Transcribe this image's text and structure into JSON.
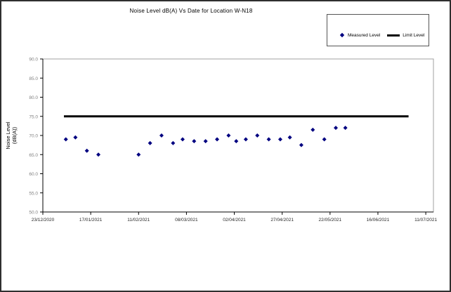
{
  "frame": {
    "background": "#ffffff",
    "border_color": "#2f2f2f"
  },
  "chart_data": {
    "type": "scatter",
    "title": "Noise Level dB(A) Vs Date for Location W-N18",
    "xlabel": "",
    "ylabel_lines": [
      "Noise Level",
      "(dB(A))"
    ],
    "ylim": [
      50,
      90
    ],
    "y_tick_step": 5,
    "y_tick_labels": [
      "50.0",
      "55.0",
      "60.0",
      "65.0",
      "70.0",
      "75.0",
      "80.0",
      "85.0",
      "90.0"
    ],
    "x_tick_labels": [
      "23/12/2020",
      "17/01/2021",
      "11/02/2021",
      "08/03/2021",
      "02/04/2021",
      "27/04/2021",
      "22/05/2021",
      "16/06/2021",
      "11/07/2021"
    ],
    "x_tick_days": [
      0,
      25,
      50,
      75,
      100,
      125,
      150,
      175,
      200
    ],
    "x_max_day": 204,
    "grid": false,
    "colors": {
      "measured_point": "#000080",
      "limit_line": "#000000",
      "y_tick_label": "#808080",
      "x_tick_label": "#262626",
      "plot_border": "#a0a0a0",
      "axis": "#000000"
    },
    "legend": {
      "position": "top-right",
      "entries": [
        {
          "label": "Measured Level",
          "marker": "diamond",
          "color": "#000080"
        },
        {
          "label": "Limit Level",
          "marker": "line",
          "color": "#000000"
        }
      ]
    },
    "series": [
      {
        "name": "Measured Level",
        "type": "scatter",
        "marker": "diamond",
        "color": "#000080",
        "points": [
          {
            "date": "04/01/2021",
            "day": 12,
            "value": 69.0
          },
          {
            "date": "09/01/2021",
            "day": 17,
            "value": 69.5
          },
          {
            "date": "15/01/2021",
            "day": 23,
            "value": 66.0
          },
          {
            "date": "21/01/2021",
            "day": 29,
            "value": 65.0
          },
          {
            "date": "11/02/2021",
            "day": 50,
            "value": 65.0
          },
          {
            "date": "17/02/2021",
            "day": 56,
            "value": 68.0
          },
          {
            "date": "23/02/2021",
            "day": 62,
            "value": 70.0
          },
          {
            "date": "01/03/2021",
            "day": 68,
            "value": 68.0
          },
          {
            "date": "06/03/2021",
            "day": 73,
            "value": 69.0
          },
          {
            "date": "12/03/2021",
            "day": 79,
            "value": 68.5
          },
          {
            "date": "18/03/2021",
            "day": 85,
            "value": 68.5
          },
          {
            "date": "24/03/2021",
            "day": 91,
            "value": 69.0
          },
          {
            "date": "30/03/2021",
            "day": 97,
            "value": 70.0
          },
          {
            "date": "03/04/2021",
            "day": 101,
            "value": 68.5
          },
          {
            "date": "08/04/2021",
            "day": 106,
            "value": 69.0
          },
          {
            "date": "14/04/2021",
            "day": 112,
            "value": 70.0
          },
          {
            "date": "20/04/2021",
            "day": 118,
            "value": 69.0
          },
          {
            "date": "26/04/2021",
            "day": 124,
            "value": 69.0
          },
          {
            "date": "01/05/2021",
            "day": 129,
            "value": 69.5
          },
          {
            "date": "07/05/2021",
            "day": 135,
            "value": 67.5
          },
          {
            "date": "13/05/2021",
            "day": 141,
            "value": 71.5
          },
          {
            "date": "19/05/2021",
            "day": 147,
            "value": 69.0
          },
          {
            "date": "25/05/2021",
            "day": 153,
            "value": 72.0
          },
          {
            "date": "30/05/2021",
            "day": 158,
            "value": 72.0
          }
        ]
      },
      {
        "name": "Limit Level",
        "type": "line",
        "color": "#000000",
        "value": 75.0,
        "start_day": 11,
        "end_day": 191
      }
    ]
  }
}
